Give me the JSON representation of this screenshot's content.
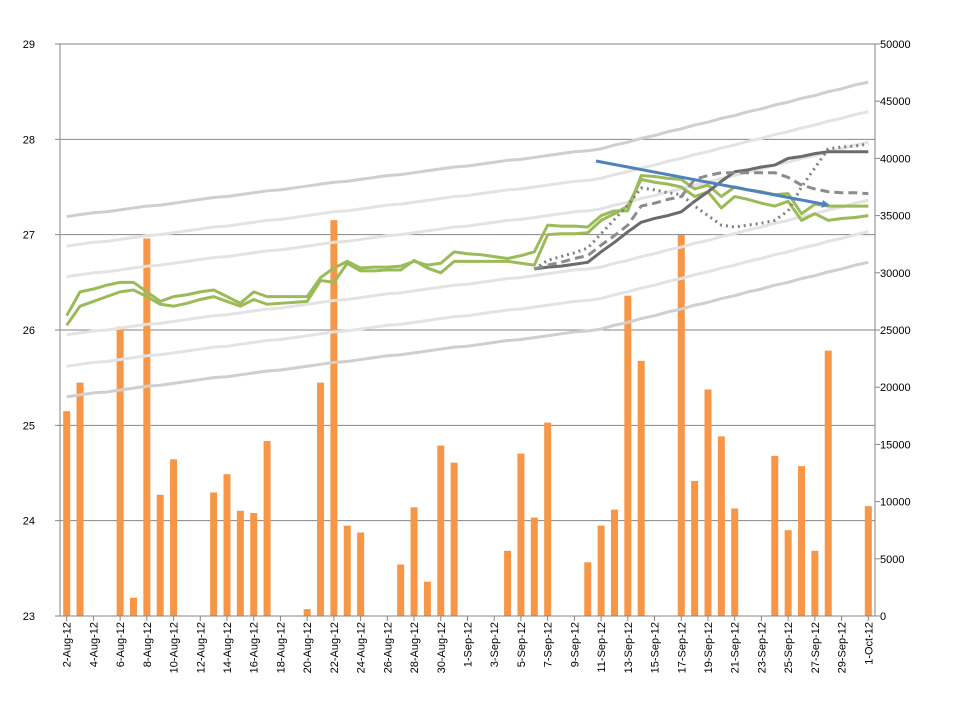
{
  "chart_data": {
    "type": "combo",
    "categories": [
      "2-Aug-12",
      null,
      "4-Aug-12",
      null,
      "6-Aug-12",
      null,
      "8-Aug-12",
      null,
      "10-Aug-12",
      null,
      "12-Aug-12",
      null,
      "14-Aug-12",
      null,
      "16-Aug-12",
      null,
      "18-Aug-12",
      null,
      "20-Aug-12",
      null,
      "22-Aug-12",
      null,
      "24-Aug-12",
      null,
      "26-Aug-12",
      null,
      "28-Aug-12",
      null,
      "30-Aug-12",
      null,
      "1-Sep-12",
      null,
      "3-Sep-12",
      null,
      "5-Sep-12",
      null,
      "7-Sep-12",
      null,
      "9-Sep-12",
      null,
      "11-Sep-12",
      null,
      "13-Sep-12",
      null,
      "15-Sep-12",
      null,
      "17-Sep-12",
      null,
      "19-Sep-12",
      null,
      "21-Sep-12",
      null,
      "23-Sep-12",
      null,
      "25-Sep-12",
      null,
      "27-Sep-12",
      null,
      "29-Sep-12",
      null,
      "1-Oct-12"
    ],
    "ylim": [
      23,
      29
    ],
    "yticks": [
      23,
      24,
      25,
      26,
      27,
      28,
      29
    ],
    "y2lim": [
      0,
      50000
    ],
    "y2ticks": [
      0,
      5000,
      10000,
      15000,
      20000,
      25000,
      30000,
      35000,
      40000,
      45000,
      50000
    ],
    "grid": true,
    "series": [
      {
        "type": "bar",
        "axis": "y2",
        "color": "#f79646",
        "values": [
          17900,
          20400,
          null,
          null,
          25300,
          1600,
          33000,
          10600,
          13700,
          null,
          null,
          10800,
          12400,
          9200,
          9000,
          15300,
          null,
          null,
          600,
          20400,
          34600,
          7900,
          7300,
          null,
          null,
          4500,
          9500,
          3000,
          14900,
          13400,
          null,
          null,
          null,
          5700,
          14200,
          8600,
          16900,
          null,
          null,
          4700,
          7900,
          9300,
          28000,
          22300,
          null,
          null,
          33300,
          11800,
          19800,
          15700,
          9400,
          null,
          null,
          14000,
          7500,
          13100,
          5700,
          23200,
          null,
          null,
          9600
        ]
      },
      {
        "type": "line",
        "color": "#cfcfcf",
        "values": [
          27.19,
          27.21,
          27.23,
          27.24,
          27.26,
          27.28,
          27.3,
          27.31,
          27.33,
          27.35,
          27.37,
          27.39,
          27.4,
          27.42,
          27.44,
          27.46,
          27.47,
          27.49,
          27.51,
          27.53,
          27.55,
          27.56,
          27.58,
          27.6,
          27.62,
          27.63,
          27.65,
          27.67,
          27.69,
          27.71,
          27.72,
          27.74,
          27.76,
          27.78,
          27.79,
          27.81,
          27.83,
          27.85,
          27.87,
          27.88,
          27.9,
          27.94,
          27.97,
          28.01,
          28.04,
          28.08,
          28.11,
          28.15,
          28.18,
          28.22,
          28.25,
          28.29,
          28.32,
          28.36,
          28.39,
          28.43,
          28.46,
          28.5,
          28.53,
          28.57,
          28.6
        ]
      },
      {
        "type": "line",
        "color": "#e3e3e3",
        "values": [
          26.88,
          26.9,
          26.92,
          26.93,
          26.95,
          26.97,
          26.99,
          27.0,
          27.02,
          27.04,
          27.06,
          27.08,
          27.09,
          27.11,
          27.13,
          27.15,
          27.16,
          27.18,
          27.2,
          27.22,
          27.24,
          27.25,
          27.27,
          27.29,
          27.31,
          27.32,
          27.34,
          27.36,
          27.38,
          27.4,
          27.41,
          27.43,
          27.45,
          27.47,
          27.48,
          27.5,
          27.52,
          27.54,
          27.56,
          27.57,
          27.59,
          27.63,
          27.66,
          27.7,
          27.73,
          27.77,
          27.8,
          27.84,
          27.87,
          27.91,
          27.94,
          27.98,
          28.01,
          28.05,
          28.08,
          28.12,
          28.15,
          28.19,
          28.22,
          28.26,
          28.29
        ]
      },
      {
        "type": "line",
        "color": "#e3e3e3",
        "values": [
          26.56,
          26.58,
          26.6,
          26.61,
          26.63,
          26.65,
          26.67,
          26.68,
          26.7,
          26.72,
          26.74,
          26.76,
          26.77,
          26.79,
          26.81,
          26.83,
          26.84,
          26.86,
          26.88,
          26.9,
          26.92,
          26.93,
          26.95,
          26.97,
          26.99,
          27.0,
          27.02,
          27.04,
          27.06,
          27.08,
          27.09,
          27.11,
          27.13,
          27.15,
          27.16,
          27.18,
          27.2,
          27.22,
          27.24,
          27.25,
          27.27,
          27.31,
          27.34,
          27.38,
          27.41,
          27.45,
          27.48,
          27.52,
          27.55,
          27.59,
          27.62,
          27.66,
          27.69,
          27.73,
          27.76,
          27.8,
          27.83,
          27.87,
          27.9,
          27.94,
          27.97
        ]
      },
      {
        "type": "line",
        "color": "#e3e3e3",
        "values": [
          25.95,
          25.97,
          25.99,
          26.0,
          26.02,
          26.04,
          26.06,
          26.07,
          26.09,
          26.11,
          26.13,
          26.15,
          26.16,
          26.18,
          26.2,
          26.22,
          26.23,
          26.25,
          26.27,
          26.29,
          26.31,
          26.32,
          26.34,
          26.36,
          26.38,
          26.39,
          26.41,
          26.43,
          26.45,
          26.47,
          26.48,
          26.5,
          26.52,
          26.54,
          26.55,
          26.57,
          26.59,
          26.61,
          26.63,
          26.64,
          26.66,
          26.7,
          26.73,
          26.77,
          26.8,
          26.84,
          26.87,
          26.91,
          26.94,
          26.98,
          27.01,
          27.05,
          27.08,
          27.12,
          27.15,
          27.19,
          27.22,
          27.26,
          27.29,
          27.33,
          27.36
        ]
      },
      {
        "type": "line",
        "color": "#e3e3e3",
        "values": [
          25.62,
          25.64,
          25.66,
          25.67,
          25.69,
          25.71,
          25.73,
          25.74,
          25.76,
          25.78,
          25.8,
          25.82,
          25.83,
          25.85,
          25.87,
          25.89,
          25.9,
          25.92,
          25.94,
          25.96,
          25.98,
          25.99,
          26.01,
          26.03,
          26.05,
          26.06,
          26.08,
          26.1,
          26.12,
          26.14,
          26.15,
          26.17,
          26.19,
          26.21,
          26.22,
          26.24,
          26.26,
          26.28,
          26.3,
          26.31,
          26.33,
          26.37,
          26.4,
          26.44,
          26.47,
          26.51,
          26.54,
          26.58,
          26.61,
          26.65,
          26.68,
          26.72,
          26.75,
          26.79,
          26.82,
          26.86,
          26.89,
          26.93,
          26.96,
          27.0,
          27.03
        ]
      },
      {
        "type": "line",
        "color": "#cfcfcf",
        "values": [
          25.3,
          25.32,
          25.34,
          25.35,
          25.37,
          25.39,
          25.41,
          25.42,
          25.44,
          25.46,
          25.48,
          25.5,
          25.51,
          25.53,
          25.55,
          25.57,
          25.58,
          25.6,
          25.62,
          25.64,
          25.66,
          25.67,
          25.69,
          25.71,
          25.73,
          25.74,
          25.76,
          25.78,
          25.8,
          25.82,
          25.83,
          25.85,
          25.87,
          25.89,
          25.9,
          25.92,
          25.94,
          25.96,
          25.98,
          25.99,
          26.01,
          26.05,
          26.08,
          26.12,
          26.15,
          26.19,
          26.22,
          26.26,
          26.29,
          26.33,
          26.36,
          26.4,
          26.43,
          26.47,
          26.5,
          26.54,
          26.57,
          26.61,
          26.64,
          26.68,
          26.71
        ]
      },
      {
        "type": "line",
        "color": "#9bbb59",
        "values": [
          26.15,
          26.4,
          26.43,
          26.47,
          26.5,
          26.5,
          26.4,
          26.3,
          26.35,
          26.37,
          26.4,
          26.42,
          26.35,
          26.28,
          26.4,
          26.35,
          26.35,
          26.35,
          26.35,
          26.55,
          26.65,
          26.72,
          26.65,
          26.66,
          26.66,
          26.67,
          26.72,
          26.68,
          26.7,
          26.82,
          26.8,
          26.79,
          26.77,
          26.75,
          26.78,
          26.82,
          27.1,
          27.09,
          27.09,
          27.08,
          27.2,
          27.25,
          27.25,
          27.62,
          27.61,
          27.59,
          27.58,
          27.48,
          27.52,
          27.4,
          27.5,
          27.47,
          27.45,
          27.42,
          27.43,
          27.22,
          27.32,
          27.3,
          27.3,
          27.3,
          27.3
        ]
      },
      {
        "type": "line",
        "color": "#9bbb59",
        "values": [
          26.05,
          26.25,
          26.3,
          26.35,
          26.4,
          26.42,
          26.35,
          26.27,
          26.25,
          26.28,
          26.32,
          26.35,
          26.3,
          26.25,
          26.32,
          26.27,
          26.28,
          26.29,
          26.3,
          26.52,
          26.5,
          26.7,
          26.62,
          26.62,
          26.63,
          26.63,
          26.73,
          26.65,
          26.6,
          26.72,
          26.72,
          26.72,
          26.72,
          26.72,
          26.7,
          26.68,
          27.0,
          27.01,
          27.01,
          27.02,
          27.15,
          27.22,
          27.3,
          27.58,
          27.55,
          27.53,
          27.5,
          27.4,
          27.45,
          27.28,
          27.4,
          27.37,
          27.33,
          27.3,
          27.35,
          27.15,
          27.22,
          27.15,
          27.17,
          27.18,
          27.2
        ]
      },
      {
        "type": "line",
        "color": "#6b6b6b",
        "values": [
          null,
          null,
          null,
          null,
          null,
          null,
          null,
          null,
          null,
          null,
          null,
          null,
          null,
          null,
          null,
          null,
          null,
          null,
          null,
          null,
          null,
          null,
          null,
          null,
          null,
          null,
          null,
          null,
          null,
          null,
          null,
          null,
          null,
          null,
          null,
          26.64,
          26.66,
          26.67,
          26.69,
          26.71,
          26.82,
          26.92,
          27.03,
          27.13,
          27.17,
          27.2,
          27.24,
          27.35,
          27.45,
          27.56,
          27.66,
          27.68,
          27.71,
          27.73,
          27.8,
          27.82,
          27.85,
          27.87,
          27.87,
          27.87,
          27.87
        ]
      },
      {
        "type": "line",
        "color": "#7f7f7f",
        "dash": "dotted",
        "values": [
          null,
          null,
          null,
          null,
          null,
          null,
          null,
          null,
          null,
          null,
          null,
          null,
          null,
          null,
          null,
          null,
          null,
          null,
          null,
          null,
          null,
          null,
          null,
          null,
          null,
          null,
          null,
          null,
          null,
          null,
          null,
          null,
          null,
          null,
          null,
          26.64,
          26.73,
          26.77,
          26.81,
          26.86,
          27.01,
          27.16,
          27.31,
          27.49,
          27.47,
          27.44,
          27.42,
          27.3,
          27.2,
          27.1,
          27.08,
          27.1,
          27.12,
          27.15,
          27.25,
          27.5,
          27.7,
          27.9,
          27.92,
          27.93,
          27.95
        ]
      },
      {
        "type": "line",
        "color": "#8c8c8c",
        "dash": "dashed",
        "values": [
          null,
          null,
          null,
          null,
          null,
          null,
          null,
          null,
          null,
          null,
          null,
          null,
          null,
          null,
          null,
          null,
          null,
          null,
          null,
          null,
          null,
          null,
          null,
          null,
          null,
          null,
          null,
          null,
          null,
          null,
          null,
          null,
          null,
          null,
          null,
          26.64,
          26.68,
          26.71,
          26.75,
          26.78,
          26.89,
          26.99,
          27.1,
          27.3,
          27.33,
          27.37,
          27.4,
          27.58,
          27.62,
          27.65,
          27.65,
          27.65,
          27.65,
          27.65,
          27.6,
          27.52,
          27.48,
          27.45,
          27.44,
          27.44,
          27.43
        ]
      }
    ]
  }
}
